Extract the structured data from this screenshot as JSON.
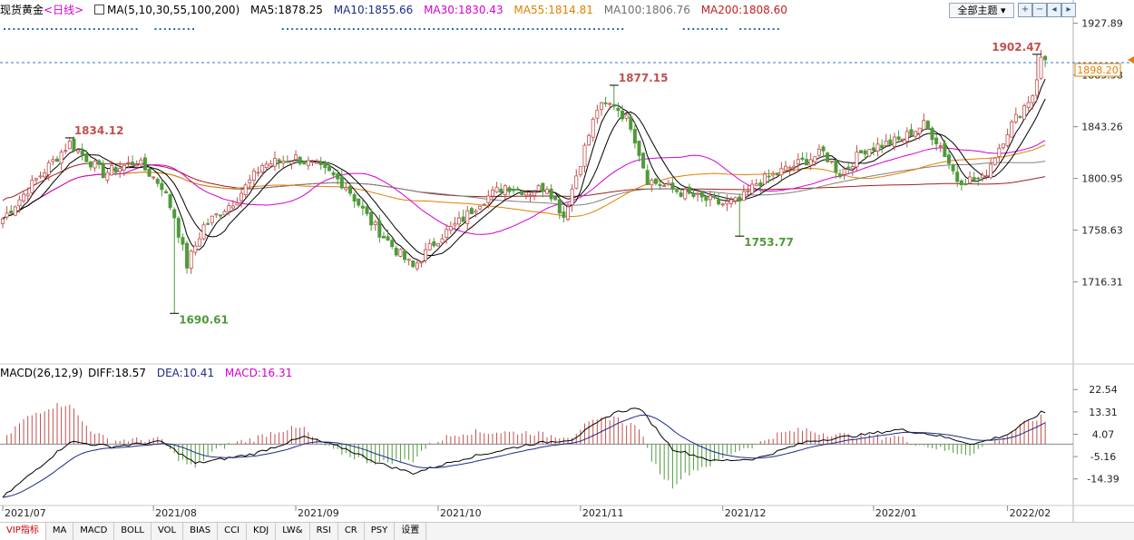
{
  "header": {
    "symbol": "现货黄金",
    "period": "<日线>",
    "ma_params": "MA(5,10,30,55,100,200)",
    "ma5": "MA5:1878.25",
    "ma10": "MA10:1855.66",
    "ma30": "MA30:1830.43",
    "ma55": "MA55:1814.81",
    "ma100": "MA100:1806.76",
    "ma200": "MA200:1808.60",
    "theme_button": "全部主题",
    "colors": {
      "ma5": "#000000",
      "ma10": "#000000",
      "ma30": "#d400d4",
      "ma55": "#e08000",
      "ma100": "#808080",
      "ma200": "#a02020"
    }
  },
  "macd_header": {
    "params": "MACD(26,12,9)",
    "diff": "DIFF:18.57",
    "dea": "DEA:10.41",
    "macd": "MACD:16.31"
  },
  "tabs": [
    "VIP指标",
    "MA",
    "MACD",
    "BOLL",
    "VOL",
    "BIAS",
    "CCI",
    "KDJ",
    "LW&",
    "RSI",
    "CR",
    "PSY",
    "设置"
  ],
  "active_tab": "VIP指标",
  "chart_data": {
    "type": "candlestick",
    "price_axis": {
      "ticks": [
        "1927.89",
        "1885.58",
        "1843.26",
        "1800.95",
        "1758.63",
        "1716.31"
      ],
      "ylim": [
        1650,
        1935
      ]
    },
    "macd_axis": {
      "ticks": [
        "22.54",
        "13.31",
        "4.07",
        "-5.16",
        "-14.39"
      ],
      "ylim": [
        -25,
        26
      ]
    },
    "x_labels": [
      "2021/07",
      "2021/08",
      "2021/09",
      "2021/10",
      "2021/11",
      "2021/12",
      "2022/01",
      "2022/02"
    ],
    "current_price": "1898.20",
    "annotations": [
      {
        "label": "1834.12",
        "idx": 16,
        "value": 1834.12,
        "type": "high"
      },
      {
        "label": "1690.61",
        "idx": 41,
        "value": 1690.61,
        "type": "low"
      },
      {
        "label": "1877.15",
        "idx": 146,
        "value": 1877.15,
        "type": "high"
      },
      {
        "label": "1753.77",
        "idx": 176,
        "value": 1753.77,
        "type": "low"
      },
      {
        "label": "1902.47",
        "idx": 247,
        "value": 1902.47,
        "type": "high"
      }
    ],
    "close_anchors": [
      [
        0,
        1768
      ],
      [
        8,
        1800
      ],
      [
        16,
        1830
      ],
      [
        24,
        1805
      ],
      [
        32,
        1815
      ],
      [
        38,
        1795
      ],
      [
        41,
        1770
      ],
      [
        44,
        1730
      ],
      [
        48,
        1762
      ],
      [
        56,
        1785
      ],
      [
        62,
        1812
      ],
      [
        70,
        1818
      ],
      [
        78,
        1805
      ],
      [
        82,
        1795
      ],
      [
        88,
        1765
      ],
      [
        94,
        1742
      ],
      [
        98,
        1728
      ],
      [
        104,
        1752
      ],
      [
        110,
        1768
      ],
      [
        114,
        1782
      ],
      [
        120,
        1795
      ],
      [
        126,
        1790
      ],
      [
        130,
        1795
      ],
      [
        134,
        1770
      ],
      [
        138,
        1815
      ],
      [
        142,
        1858
      ],
      [
        146,
        1862
      ],
      [
        150,
        1845
      ],
      [
        154,
        1800
      ],
      [
        160,
        1792
      ],
      [
        166,
        1785
      ],
      [
        172,
        1780
      ],
      [
        176,
        1782
      ],
      [
        180,
        1797
      ],
      [
        188,
        1810
      ],
      [
        196,
        1822
      ],
      [
        200,
        1805
      ],
      [
        206,
        1825
      ],
      [
        214,
        1832
      ],
      [
        220,
        1845
      ],
      [
        224,
        1828
      ],
      [
        228,
        1800
      ],
      [
        234,
        1800
      ],
      [
        240,
        1840
      ],
      [
        246,
        1870
      ],
      [
        248,
        1898
      ]
    ],
    "macd_anchors": [
      [
        0,
        -22
      ],
      [
        16,
        1
      ],
      [
        26,
        -1
      ],
      [
        38,
        1
      ],
      [
        46,
        -8
      ],
      [
        60,
        -4
      ],
      [
        72,
        3
      ],
      [
        82,
        -2
      ],
      [
        90,
        -8
      ],
      [
        98,
        -12
      ],
      [
        110,
        -6
      ],
      [
        126,
        0
      ],
      [
        136,
        2
      ],
      [
        146,
        13
      ],
      [
        152,
        15
      ],
      [
        160,
        -2
      ],
      [
        170,
        -7
      ],
      [
        180,
        -6
      ],
      [
        192,
        1
      ],
      [
        206,
        4
      ],
      [
        214,
        6
      ],
      [
        222,
        4
      ],
      [
        232,
        0
      ],
      [
        240,
        4
      ],
      [
        248,
        13
      ]
    ]
  }
}
